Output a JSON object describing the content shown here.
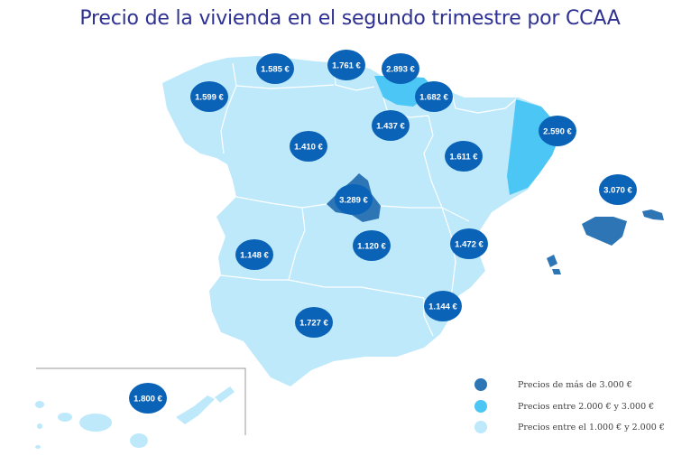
{
  "title": "Precio de la vivienda en el segundo trimestre por CCAA",
  "colors": {
    "high": "#2e75b6",
    "mid": "#4cc6f5",
    "low": "#bde9fb",
    "bubble": "#0b63b8",
    "border": "#ffffff"
  },
  "legend": [
    {
      "label": "Precios de más de 3.000 €",
      "color": "#2e75b6"
    },
    {
      "label": "Precios entre 2.000 € y 3.000 €",
      "color": "#4cc6f5"
    },
    {
      "label": "Precios entre el 1.000 € y 2.000 €",
      "color": "#bde9fb"
    }
  ],
  "prices": [
    {
      "region": "galicia",
      "label": "1.599 €"
    },
    {
      "region": "asturias",
      "label": "1.585 €"
    },
    {
      "region": "cantabria",
      "label": "1.761 €"
    },
    {
      "region": "pais-vasco",
      "label": "2.893 €"
    },
    {
      "region": "navarra",
      "label": "1.682 €"
    },
    {
      "region": "la-rioja",
      "label": "1.437 €"
    },
    {
      "region": "castilla-y-leon",
      "label": "1.410 €"
    },
    {
      "region": "aragon",
      "label": "1.611 €"
    },
    {
      "region": "cataluna",
      "label": "2.590 €"
    },
    {
      "region": "baleares",
      "label": "3.070 €"
    },
    {
      "region": "madrid",
      "label": "3.289 €"
    },
    {
      "region": "extremadura",
      "label": "1.148 €"
    },
    {
      "region": "castilla-la-mancha",
      "label": "1.120 €"
    },
    {
      "region": "comunidad-valenciana",
      "label": "1.472 €"
    },
    {
      "region": "murcia",
      "label": "1.144 €"
    },
    {
      "region": "andalucia",
      "label": "1.727 €"
    },
    {
      "region": "canarias",
      "label": "1.800 €"
    }
  ]
}
